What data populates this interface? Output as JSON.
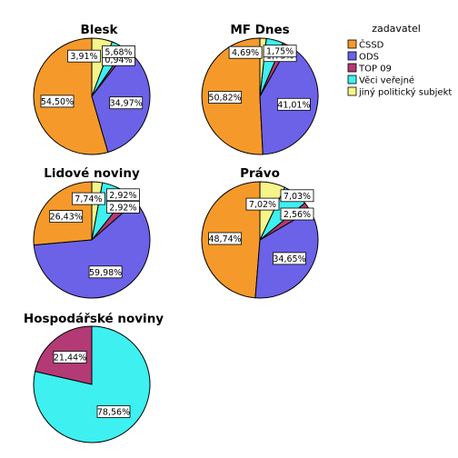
{
  "chart_data": {
    "type": "pie",
    "legend": {
      "title": "zadavatel",
      "placement": "top-right",
      "entries": [
        {
          "name": "ČSSD",
          "color": "#f59a2a"
        },
        {
          "name": "ODS",
          "color": "#6b62e8"
        },
        {
          "name": "TOP 09",
          "color": "#b33a74"
        },
        {
          "name": "Věci veřejné",
          "color": "#3ef0f0"
        },
        {
          "name": "jiný politický subjekt",
          "color": "#f5f58a"
        }
      ]
    },
    "pies": [
      {
        "title": "Blesk",
        "slices": [
          {
            "category": "ČSSD",
            "value": 54.5,
            "label": "54,50%"
          },
          {
            "category": "ODS",
            "value": 34.97,
            "label": "34,97%"
          },
          {
            "category": "TOP 09",
            "value": 0.94,
            "label": "0,94%"
          },
          {
            "category": "Věci veřejné",
            "value": 3.91,
            "label": "3,91%"
          },
          {
            "category": "jiný politický subjekt",
            "value": 5.68,
            "label": "5,68%"
          }
        ]
      },
      {
        "title": "MF Dnes",
        "slices": [
          {
            "category": "ČSSD",
            "value": 50.82,
            "label": "50,82%"
          },
          {
            "category": "ODS",
            "value": 41.01,
            "label": "41,01%"
          },
          {
            "category": "TOP 09",
            "value": 1.73,
            "label": "1,73%"
          },
          {
            "category": "Věci veřejné",
            "value": 4.69,
            "label": "4,69%"
          },
          {
            "category": "jiný politický subjekt",
            "value": 1.75,
            "label": "1,75%"
          }
        ]
      },
      {
        "title": "Lidové noviny",
        "slices": [
          {
            "category": "ČSSD",
            "value": 26.43,
            "label": "26,43%"
          },
          {
            "category": "ODS",
            "value": 59.98,
            "label": "59,98%"
          },
          {
            "category": "TOP 09",
            "value": 2.92,
            "label": "2,92%"
          },
          {
            "category": "Věci veřejné",
            "value": 7.74,
            "label": "7,74%"
          },
          {
            "category": "jiný politický subjekt",
            "value": 2.92,
            "label": "2,92%"
          }
        ]
      },
      {
        "title": "Právo",
        "slices": [
          {
            "category": "ČSSD",
            "value": 48.74,
            "label": "48,74%"
          },
          {
            "category": "ODS",
            "value": 34.65,
            "label": "34,65%"
          },
          {
            "category": "TOP 09",
            "value": 2.56,
            "label": "2,56%"
          },
          {
            "category": "Věci veřejné",
            "value": 7.02,
            "label": "7,02%"
          },
          {
            "category": "jiný politický subjekt",
            "value": 7.03,
            "label": "7,03%"
          }
        ]
      },
      {
        "title": "Hospodářské noviny",
        "slices": [
          {
            "category": "TOP 09",
            "value": 21.44,
            "label": "21,44%"
          },
          {
            "category": "Věci veřejné",
            "value": 78.56,
            "label": "78,56%"
          }
        ]
      }
    ]
  }
}
